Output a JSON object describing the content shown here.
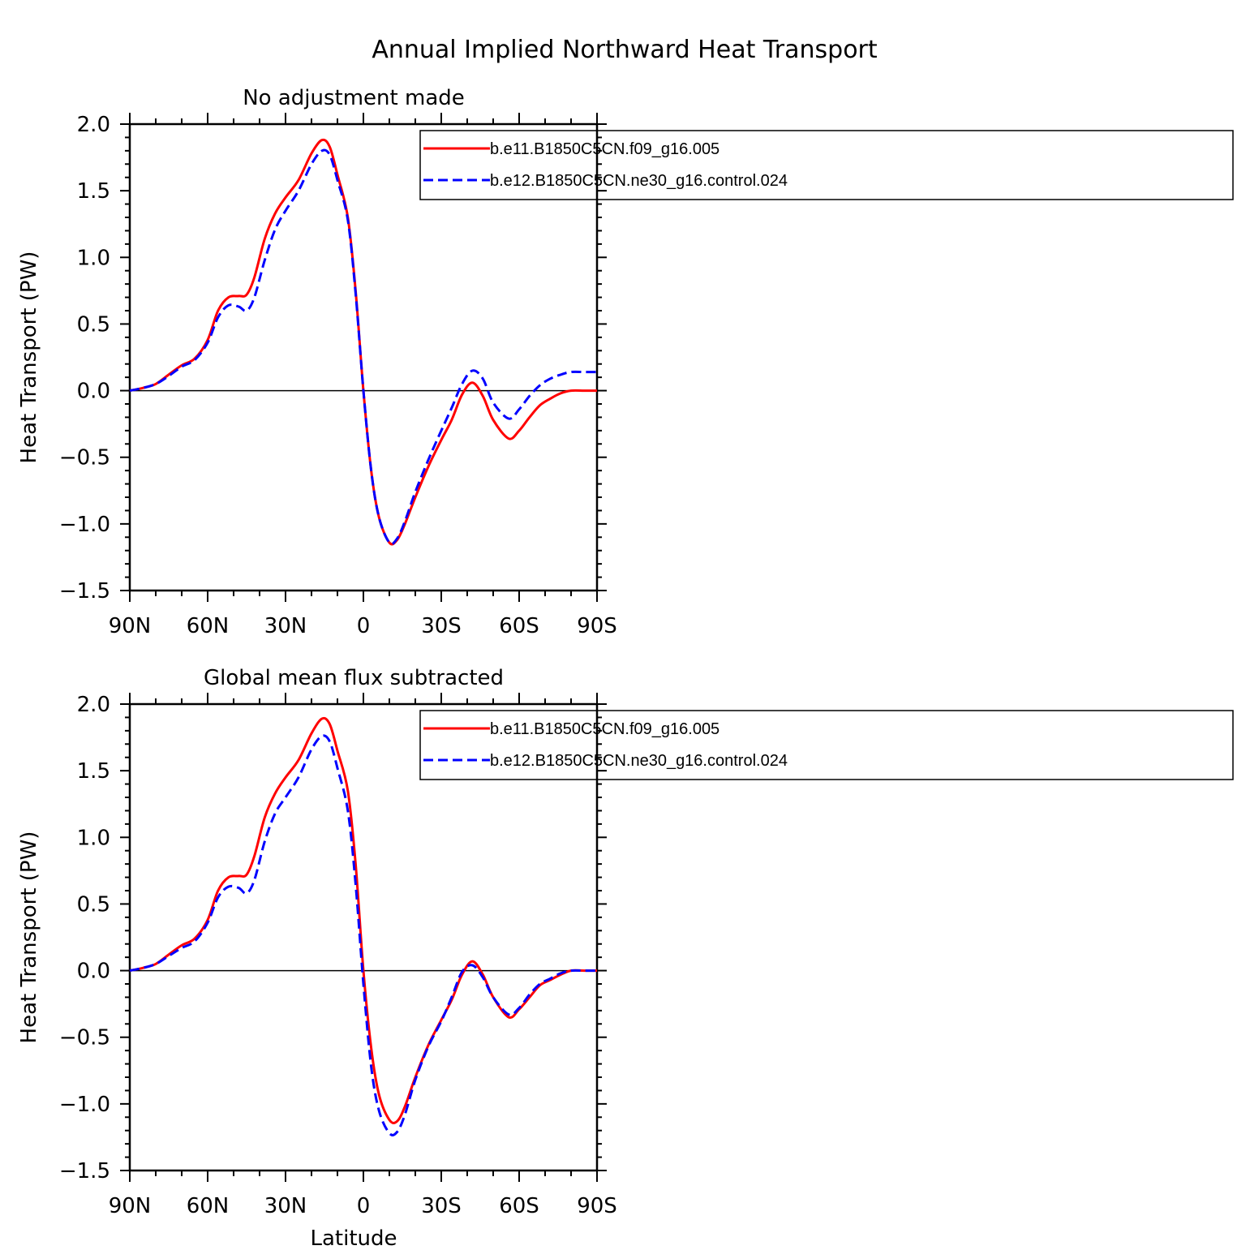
{
  "figure": {
    "title": "Annual Implied Northward Heat Transport"
  },
  "chart_data": [
    {
      "type": "line",
      "title": "No adjustment made",
      "xlabel": "",
      "ylabel": "Heat Transport (PW)",
      "xlim": [
        90,
        -90
      ],
      "ylim": [
        -1.5,
        2.0
      ],
      "x_ticks": [
        {
          "value": 90,
          "label": "90N"
        },
        {
          "value": 60,
          "label": "60N"
        },
        {
          "value": 30,
          "label": "30N"
        },
        {
          "value": 0,
          "label": "0"
        },
        {
          "value": -30,
          "label": "30S"
        },
        {
          "value": -60,
          "label": "60S"
        },
        {
          "value": -90,
          "label": "90S"
        }
      ],
      "y_ticks": [
        {
          "value": 2.0,
          "label": "2.0"
        },
        {
          "value": 1.5,
          "label": "1.5"
        },
        {
          "value": 1.0,
          "label": "1.0"
        },
        {
          "value": 0.5,
          "label": "0.5"
        },
        {
          "value": 0.0,
          "label": "0.0"
        },
        {
          "value": -0.5,
          "label": "−0.5"
        },
        {
          "value": -1.0,
          "label": "−1.0"
        },
        {
          "value": -1.5,
          "label": "−1.5"
        }
      ],
      "grid": false,
      "zero_line": true,
      "legend_position": "top-right",
      "series": [
        {
          "name": "b.e11.B1850C5CN.f09_g16.005",
          "color": "#ff0000",
          "dash": "solid",
          "x": [
            90,
            85,
            80,
            75,
            70,
            65,
            60,
            56,
            52,
            48,
            45,
            42,
            38,
            34,
            30,
            25,
            20,
            16,
            13,
            10,
            6,
            3,
            0,
            -3,
            -6,
            -10,
            -13,
            -16,
            -20,
            -25,
            -30,
            -34,
            -38,
            -42,
            -46,
            -50,
            -56,
            -60,
            -64,
            -68,
            -72,
            -76,
            -80,
            -85,
            -90
          ],
          "y": [
            0.0,
            0.02,
            0.05,
            0.12,
            0.19,
            0.24,
            0.38,
            0.6,
            0.7,
            0.71,
            0.72,
            0.85,
            1.14,
            1.33,
            1.45,
            1.58,
            1.78,
            1.88,
            1.83,
            1.62,
            1.3,
            0.75,
            0.0,
            -0.6,
            -0.95,
            -1.14,
            -1.12,
            -1.0,
            -0.8,
            -0.57,
            -0.37,
            -0.22,
            -0.03,
            0.06,
            -0.04,
            -0.22,
            -0.36,
            -0.3,
            -0.2,
            -0.11,
            -0.06,
            -0.02,
            0.0,
            0.0,
            0.0
          ]
        },
        {
          "name": "b.e12.B1850C5CN.ne30_g16.control.024",
          "color": "#0000ff",
          "dash": "dashed",
          "x": [
            90,
            85,
            80,
            75,
            70,
            65,
            60,
            56,
            52,
            48,
            45,
            42,
            38,
            34,
            30,
            25,
            20,
            16,
            13,
            10,
            6,
            3,
            0,
            -3,
            -6,
            -10,
            -13,
            -16,
            -20,
            -25,
            -30,
            -34,
            -38,
            -42,
            -46,
            -50,
            -56,
            -60,
            -64,
            -68,
            -72,
            -76,
            -80,
            -85,
            -90
          ],
          "y": [
            0.0,
            0.02,
            0.05,
            0.11,
            0.18,
            0.23,
            0.36,
            0.55,
            0.64,
            0.63,
            0.6,
            0.7,
            0.98,
            1.21,
            1.35,
            1.5,
            1.7,
            1.8,
            1.77,
            1.58,
            1.28,
            0.73,
            0.0,
            -0.6,
            -0.95,
            -1.14,
            -1.11,
            -0.98,
            -0.76,
            -0.52,
            -0.3,
            -0.13,
            0.05,
            0.15,
            0.09,
            -0.09,
            -0.21,
            -0.14,
            -0.04,
            0.04,
            0.09,
            0.12,
            0.14,
            0.14,
            0.14
          ]
        }
      ]
    },
    {
      "type": "line",
      "title": "Global mean flux subtracted",
      "xlabel": "Latitude",
      "ylabel": "Heat Transport (PW)",
      "xlim": [
        90,
        -90
      ],
      "ylim": [
        -1.5,
        2.0
      ],
      "x_ticks": [
        {
          "value": 90,
          "label": "90N"
        },
        {
          "value": 60,
          "label": "60N"
        },
        {
          "value": 30,
          "label": "30N"
        },
        {
          "value": 0,
          "label": "0"
        },
        {
          "value": -30,
          "label": "30S"
        },
        {
          "value": -60,
          "label": "60S"
        },
        {
          "value": -90,
          "label": "90S"
        }
      ],
      "y_ticks": [
        {
          "value": 2.0,
          "label": "2.0"
        },
        {
          "value": 1.5,
          "label": "1.5"
        },
        {
          "value": 1.0,
          "label": "1.0"
        },
        {
          "value": 0.5,
          "label": "0.5"
        },
        {
          "value": 0.0,
          "label": "0.0"
        },
        {
          "value": -0.5,
          "label": "−0.5"
        },
        {
          "value": -1.0,
          "label": "−1.0"
        },
        {
          "value": -1.5,
          "label": "−1.5"
        }
      ],
      "grid": false,
      "zero_line": true,
      "legend_position": "top-right",
      "series": [
        {
          "name": "b.e11.B1850C5CN.f09_g16.005",
          "color": "#ff0000",
          "dash": "solid",
          "x": [
            90,
            85,
            80,
            75,
            70,
            65,
            60,
            56,
            52,
            48,
            45,
            42,
            38,
            34,
            30,
            25,
            20,
            16,
            13,
            10,
            6,
            3,
            0,
            -3,
            -6,
            -10,
            -13,
            -16,
            -20,
            -25,
            -30,
            -34,
            -38,
            -42,
            -46,
            -50,
            -56,
            -60,
            -64,
            -68,
            -72,
            -76,
            -80,
            -85,
            -90
          ],
          "y": [
            0.0,
            0.02,
            0.05,
            0.12,
            0.19,
            0.24,
            0.38,
            0.6,
            0.7,
            0.71,
            0.72,
            0.86,
            1.15,
            1.33,
            1.45,
            1.58,
            1.78,
            1.89,
            1.85,
            1.65,
            1.35,
            0.8,
            0.0,
            -0.58,
            -0.93,
            -1.12,
            -1.13,
            -1.02,
            -0.8,
            -0.56,
            -0.37,
            -0.22,
            -0.03,
            0.07,
            -0.03,
            -0.2,
            -0.35,
            -0.29,
            -0.2,
            -0.11,
            -0.07,
            -0.03,
            0.0,
            0.0,
            0.0
          ]
        },
        {
          "name": "b.e12.B1850C5CN.ne30_g16.control.024",
          "color": "#0000ff",
          "dash": "dashed",
          "x": [
            90,
            85,
            80,
            75,
            70,
            65,
            60,
            56,
            52,
            48,
            45,
            42,
            38,
            34,
            30,
            25,
            20,
            16,
            13,
            10,
            6,
            3,
            0,
            -3,
            -6,
            -10,
            -13,
            -16,
            -20,
            -25,
            -30,
            -34,
            -38,
            -42,
            -46,
            -50,
            -56,
            -60,
            -64,
            -68,
            -72,
            -76,
            -80,
            -85,
            -90
          ],
          "y": [
            0.0,
            0.02,
            0.05,
            0.11,
            0.17,
            0.22,
            0.36,
            0.55,
            0.63,
            0.62,
            0.58,
            0.68,
            0.97,
            1.18,
            1.3,
            1.45,
            1.66,
            1.76,
            1.72,
            1.52,
            1.2,
            0.65,
            -0.1,
            -0.72,
            -1.05,
            -1.22,
            -1.21,
            -1.08,
            -0.82,
            -0.57,
            -0.38,
            -0.2,
            -0.01,
            0.04,
            -0.05,
            -0.2,
            -0.33,
            -0.28,
            -0.18,
            -0.1,
            -0.06,
            -0.02,
            0.0,
            0.0,
            0.0
          ]
        }
      ]
    }
  ]
}
